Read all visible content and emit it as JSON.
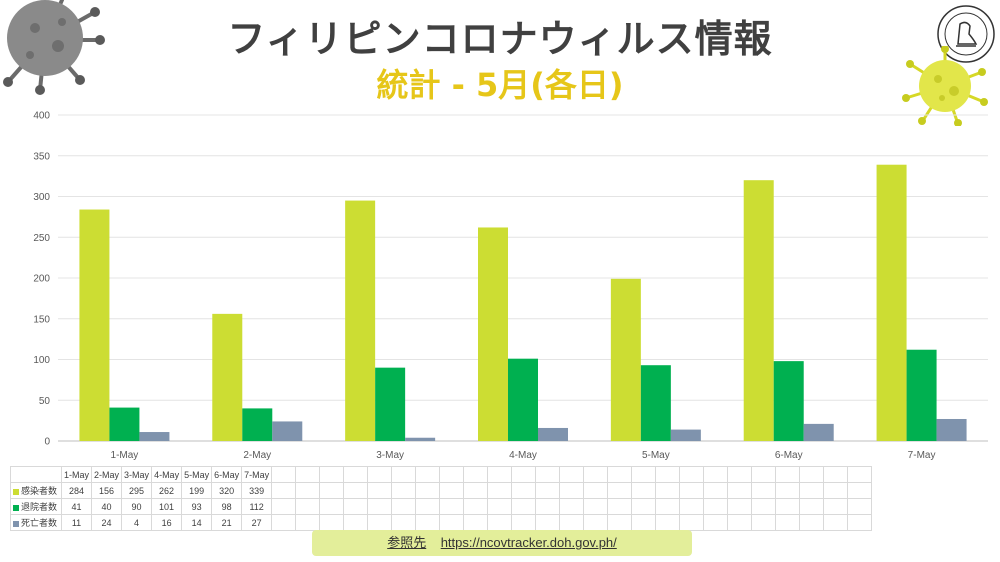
{
  "header": {
    "title": "フィリピンコロナウィルス情報",
    "subtitle": "統計 - 5月(各日)"
  },
  "colors": {
    "subtitle": "#e6c619",
    "infected": "#ccdd33",
    "recovered": "#00b050",
    "deaths": "#7f93ad"
  },
  "icons": {
    "top_left": "virus-icon",
    "top_right_logo": "seal-logo-icon",
    "right_virus": "virus-icon"
  },
  "chart_data": {
    "type": "bar",
    "categories": [
      "1-May",
      "2-May",
      "3-May",
      "4-May",
      "5-May",
      "6-May",
      "7-May"
    ],
    "series": [
      {
        "name": "感染者数",
        "values": [
          284,
          156,
          295,
          262,
          199,
          320,
          339
        ]
      },
      {
        "name": "退院者数",
        "values": [
          41,
          40,
          90,
          101,
          93,
          98,
          112
        ]
      },
      {
        "name": "死亡者数",
        "values": [
          11,
          24,
          4,
          16,
          14,
          21,
          27
        ]
      }
    ],
    "ylim": [
      0,
      400
    ],
    "yticks": [
      0,
      50,
      100,
      150,
      200,
      250,
      300,
      350,
      400
    ],
    "grid": true,
    "legend": "data-table-below"
  },
  "source": {
    "label": "参照先",
    "url": "https://ncovtracker.doh.gov.ph/"
  }
}
